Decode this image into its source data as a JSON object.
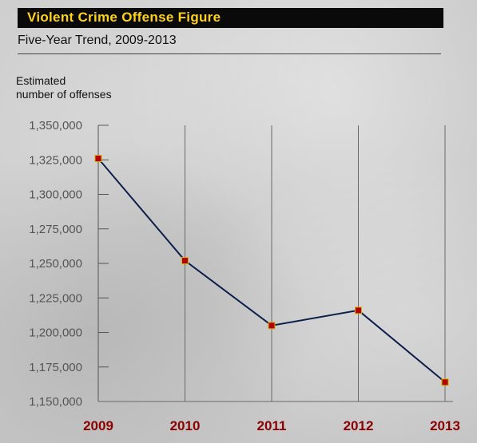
{
  "chart_data": {
    "type": "line",
    "title": "Violent Crime Offense Figure",
    "subtitle": "Five-Year Trend, 2009-2013",
    "ylabel": "Estimated number of offenses",
    "ylabel_lines": [
      "Estimated",
      "number of offenses"
    ],
    "categories": [
      "2009",
      "2010",
      "2011",
      "2012",
      "2013"
    ],
    "values": [
      1326000,
      1252000,
      1205000,
      1216000,
      1164000
    ],
    "ylim": [
      1150000,
      1350000
    ],
    "yticks": [
      1350000,
      1325000,
      1300000,
      1275000,
      1250000,
      1225000,
      1200000,
      1175000,
      1150000
    ],
    "ytick_labels": [
      "1,350,000",
      "1,325,000",
      "1,300,000",
      "1,275,000",
      "1,250,000",
      "1,225,000",
      "1,200,000",
      "1,175,000",
      "1,150,000"
    ],
    "grid": "vertical",
    "colors": {
      "line": "#0c1f4a",
      "marker": "#b30000",
      "marker_edge": "#d4b000",
      "xtick_label": "#8b0000",
      "title_text": "#ffd21a",
      "title_bar": "#0a0a0a"
    }
  }
}
